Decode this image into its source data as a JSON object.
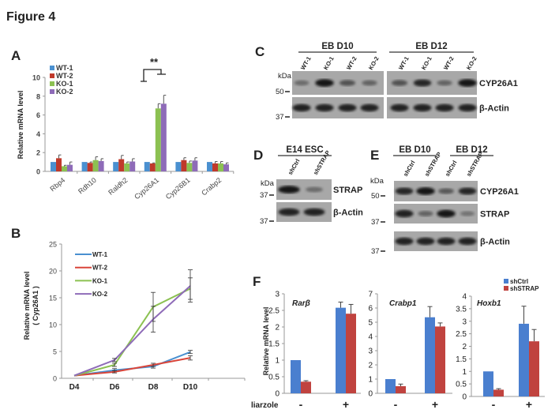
{
  "figure_title": "Figure 4",
  "panel_labels": [
    "A",
    "B",
    "C",
    "D",
    "E",
    "F"
  ],
  "chart_data": [
    {
      "id": "A",
      "type": "bar",
      "ylabel": "Relative mRNA level",
      "ylim": [
        0,
        10
      ],
      "yticks": [
        "0",
        "2",
        "4",
        "6",
        "8",
        "10"
      ],
      "categories": [
        "Rbp4",
        "Rdh10",
        "Raldh2",
        "Cyp26A1",
        "Cyp26B1",
        "Crabp2"
      ],
      "series": [
        {
          "name": "WT-1",
          "color": "#4a90d0",
          "values": [
            1,
            1,
            1,
            1,
            1,
            1
          ],
          "errors": [
            0,
            0,
            0,
            0,
            0,
            0
          ]
        },
        {
          "name": "WT-2",
          "color": "#c0392b",
          "values": [
            1.4,
            0.9,
            1.3,
            0.85,
            1.2,
            0.85
          ],
          "errors": [
            0.35,
            0.1,
            0.4,
            0.05,
            0.25,
            0.2
          ]
        },
        {
          "name": "KO-1",
          "color": "#8cc152",
          "values": [
            0.55,
            1.2,
            0.85,
            6.7,
            0.9,
            0.85
          ],
          "errors": [
            0.1,
            0.35,
            0.15,
            0.5,
            0.2,
            0.2
          ]
        },
        {
          "name": "KO-2",
          "color": "#8e6bb8",
          "values": [
            0.7,
            1.1,
            1.05,
            7.2,
            1.15,
            0.75
          ],
          "errors": [
            0.3,
            0.25,
            0.3,
            0.9,
            0.3,
            0.15
          ]
        }
      ],
      "annotation": "**",
      "legend_position": "top-left"
    },
    {
      "id": "B",
      "type": "line",
      "ylabel": "Relative mRNA level",
      "ylabel2": "( Cyp26A1 )",
      "ylim": [
        0,
        25
      ],
      "yticks": [
        "0",
        "5",
        "10",
        "15",
        "20",
        "25"
      ],
      "x": [
        "D4",
        "D6",
        "D8",
        "D10"
      ],
      "series": [
        {
          "name": "WT-1",
          "color": "#4a90d0",
          "values": [
            0.5,
            1.5,
            2.2,
            4.9
          ],
          "errors": [
            0,
            0.3,
            0.3,
            0.3
          ]
        },
        {
          "name": "WT-2",
          "color": "#d9453a",
          "values": [
            0.5,
            1.2,
            2.5,
            3.8
          ],
          "errors": [
            0,
            0.2,
            0.3,
            0.4
          ]
        },
        {
          "name": "KO-1",
          "color": "#8cc152",
          "values": [
            0.5,
            2.5,
            13.3,
            16.7
          ],
          "errors": [
            0,
            0.3,
            2.7,
            2.0
          ]
        },
        {
          "name": "KO-2",
          "color": "#8e6bb8",
          "values": [
            0.5,
            3.4,
            11.0,
            17.2
          ],
          "errors": [
            0,
            0.3,
            2.4,
            3.0
          ]
        }
      ],
      "legend_position": "top-left"
    },
    {
      "id": "F1",
      "type": "bar",
      "gene": "Rarβ",
      "ylabel": "Relative mRNA level",
      "ylim": [
        0,
        3
      ],
      "yticks": [
        "0",
        "0.5",
        "1",
        "1.5",
        "2",
        "2.5",
        "3"
      ],
      "categories": [
        "-",
        "+"
      ],
      "series": [
        {
          "name": "shCtrl",
          "color": "#4a7fcf",
          "values": [
            1,
            2.58
          ],
          "errors": [
            0,
            0.17
          ]
        },
        {
          "name": "shSTRAP",
          "color": "#c0433f",
          "values": [
            0.35,
            2.4
          ],
          "errors": [
            0.03,
            0.28
          ]
        }
      ]
    },
    {
      "id": "F2",
      "type": "bar",
      "gene": "Crabp1",
      "ylim": [
        0,
        7
      ],
      "yticks": [
        "0",
        "1",
        "2",
        "3",
        "4",
        "5",
        "6",
        "7"
      ],
      "categories": [
        "-",
        "+"
      ],
      "series": [
        {
          "name": "shCtrl",
          "color": "#4a7fcf",
          "values": [
            1,
            5.35
          ],
          "errors": [
            0,
            0.75
          ]
        },
        {
          "name": "shSTRAP",
          "color": "#c0433f",
          "values": [
            0.5,
            4.7
          ],
          "errors": [
            0.15,
            0.25
          ]
        }
      ]
    },
    {
      "id": "F3",
      "type": "bar",
      "gene": "Hoxb1",
      "ylim": [
        0,
        4
      ],
      "yticks": [
        "0",
        "0.5",
        "1",
        "1.5",
        "2",
        "2.5",
        "3",
        "3.5",
        "4"
      ],
      "categories": [
        "-",
        "+"
      ],
      "series": [
        {
          "name": "shCtrl",
          "color": "#4a7fcf",
          "values": [
            1,
            2.9
          ],
          "errors": [
            0,
            0.7
          ]
        },
        {
          "name": "shSTRAP",
          "color": "#c0433f",
          "values": [
            0.27,
            2.2
          ],
          "errors": [
            0.04,
            0.47
          ]
        }
      ],
      "legend": [
        "shCtrl",
        "shSTRAP"
      ],
      "legend_position": "top-right"
    }
  ],
  "F_xlabel": "liarzole",
  "blots": {
    "C": {
      "groups": [
        "EB  D10",
        "EB  D12"
      ],
      "lanes": [
        "WT-1",
        "KO-1",
        "WT-2",
        "KO-2",
        "WT-1",
        "KO-1",
        "WT-2",
        "KO-2"
      ],
      "rows": [
        {
          "label": "CYP26A1",
          "intensity": [
            0.45,
            0.95,
            0.6,
            0.5,
            0.6,
            0.85,
            0.5,
            0.95
          ]
        },
        {
          "label": "β-Actin",
          "intensity": [
            0.9,
            0.9,
            0.9,
            0.9,
            0.9,
            0.9,
            0.9,
            0.9
          ]
        }
      ],
      "markers": [
        "kDa",
        "50",
        "37"
      ]
    },
    "D": {
      "groups": [
        "E14  ESC"
      ],
      "lanes": [
        "shCtrl",
        "shSTRAP"
      ],
      "rows": [
        {
          "label": "STRAP",
          "intensity": [
            0.95,
            0.45
          ]
        },
        {
          "label": "β-Actin",
          "intensity": [
            0.9,
            0.9
          ]
        }
      ],
      "markers": [
        "kDa",
        "37",
        "37"
      ]
    },
    "E": {
      "groups": [
        "EB  D10",
        "EB  D12"
      ],
      "lanes": [
        "shCtrl",
        "shSTRAP",
        "shCtrl",
        "shSTRAP"
      ],
      "rows": [
        {
          "label": "CYP26A1",
          "intensity": [
            0.85,
            0.95,
            0.55,
            0.85
          ]
        },
        {
          "label": "STRAP",
          "intensity": [
            0.9,
            0.5,
            0.95,
            0.4
          ]
        },
        {
          "label": "β-Actin",
          "intensity": [
            0.9,
            0.9,
            0.9,
            0.9
          ]
        }
      ],
      "markers": [
        "kDa",
        "50",
        "37",
        "37"
      ]
    }
  }
}
